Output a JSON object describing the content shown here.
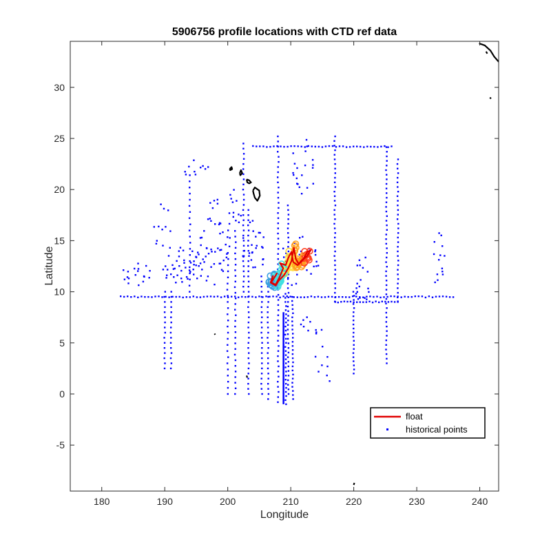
{
  "chart_data": {
    "type": "scatter",
    "title": "5906756 profile locations with CTD ref data",
    "xlabel": "Longitude",
    "ylabel": "Latitude",
    "xlim": [
      175,
      243
    ],
    "ylim": [
      -9.5,
      34.5
    ],
    "xticks": [
      180,
      190,
      200,
      210,
      220,
      230,
      240
    ],
    "yticks": [
      -5,
      0,
      5,
      10,
      15,
      20,
      25,
      30
    ],
    "grid": false,
    "legend_position": "bottom-right",
    "legend": [
      "float",
      "historical points"
    ],
    "colors": {
      "float": "#e00000",
      "historical": "#0000ff",
      "coast": "#000000",
      "float_markers": [
        "#3aa0e0",
        "#40e0e0",
        "#ffe040",
        "#ffa020",
        "#ff4020"
      ]
    },
    "series": [
      {
        "name": "float",
        "type": "line",
        "points": [
          [
            207.3,
            11.3
          ],
          [
            207.8,
            11.8
          ],
          [
            206.9,
            10.9
          ],
          [
            207.6,
            10.7
          ],
          [
            208.2,
            11.4
          ],
          [
            208.8,
            12.3
          ],
          [
            208.3,
            12.8
          ],
          [
            209.2,
            12.6
          ],
          [
            209.6,
            13.3
          ],
          [
            210.1,
            13.9
          ],
          [
            210.4,
            12.9
          ],
          [
            211.1,
            12.6
          ],
          [
            211.9,
            13.1
          ],
          [
            212.6,
            13.5
          ],
          [
            213.2,
            14.1
          ],
          [
            212.6,
            13.9
          ],
          [
            212.1,
            13.3
          ],
          [
            211.6,
            13.0
          ],
          [
            211.3,
            12.7
          ],
          [
            210.8,
            13.2
          ],
          [
            210.5,
            14.3
          ],
          [
            210.1,
            13.0
          ],
          [
            209.6,
            12.3
          ],
          [
            208.9,
            11.6
          ],
          [
            208.1,
            11.1
          ],
          [
            207.6,
            10.6
          ],
          [
            206.8,
            10.9
          ],
          [
            207.2,
            11.6
          ]
        ]
      },
      {
        "name": "historical points",
        "type": "scatter",
        "segments": [
          {
            "axis": "v",
            "x": 202.5,
            "from": 10.0,
            "to": 24.5,
            "step": 0.5
          },
          {
            "axis": "v",
            "x": 203.3,
            "from": 0.0,
            "to": 18.0,
            "step": 0.5
          },
          {
            "axis": "v",
            "x": 201.2,
            "from": 0.0,
            "to": 16.0,
            "step": 0.55
          },
          {
            "axis": "v",
            "x": 200.0,
            "from": 0.0,
            "to": 14.0,
            "step": 0.6
          },
          {
            "axis": "v",
            "x": 205.4,
            "from": 0.0,
            "to": 11.5,
            "step": 0.5
          },
          {
            "axis": "v",
            "x": 206.4,
            "from": -0.5,
            "to": 10.5,
            "step": 0.5
          },
          {
            "axis": "v",
            "x": 208.0,
            "from": -0.8,
            "to": 25.5,
            "step": 0.5
          },
          {
            "axis": "v",
            "x": 209.2,
            "from": -1.0,
            "to": 10.0,
            "step": 0.4
          },
          {
            "axis": "v",
            "x": 209.6,
            "from": 0.0,
            "to": 18.5,
            "step": 0.45
          },
          {
            "axis": "v",
            "x": 210.3,
            "from": -0.5,
            "to": 9.5,
            "step": 0.4
          },
          {
            "axis": "v",
            "x": 217.0,
            "from": 9.0,
            "to": 25.5,
            "step": 0.45
          },
          {
            "axis": "v",
            "x": 220.0,
            "from": 2.0,
            "to": 10.0,
            "step": 0.4
          },
          {
            "axis": "v",
            "x": 225.2,
            "from": 3.0,
            "to": 24.3,
            "step": 0.45
          },
          {
            "axis": "v",
            "x": 227.0,
            "from": 9.0,
            "to": 23.0,
            "step": 0.45
          },
          {
            "axis": "v",
            "x": 191.0,
            "from": 2.5,
            "to": 10.0,
            "step": 0.5
          },
          {
            "axis": "v",
            "x": 190.0,
            "from": 2.5,
            "to": 10.0,
            "step": 0.5
          },
          {
            "axis": "v",
            "x": 194.0,
            "from": 10.0,
            "to": 21.5,
            "step": 0.6
          },
          {
            "axis": "h",
            "y": 9.5,
            "from": 183.0,
            "to": 236.0,
            "step": 0.55
          },
          {
            "axis": "h",
            "y": 24.2,
            "from": 204.0,
            "to": 226.0,
            "step": 0.55
          },
          {
            "axis": "h",
            "y": 9.0,
            "from": 217.0,
            "to": 227.0,
            "step": 0.5
          }
        ],
        "clusters": [
          {
            "cx": 193.0,
            "cy": 12.5,
            "rx": 3.5,
            "ry": 2.0,
            "n": 45
          },
          {
            "cx": 198.0,
            "cy": 14.0,
            "rx": 3.0,
            "ry": 3.5,
            "n": 40
          },
          {
            "cx": 185.5,
            "cy": 11.8,
            "rx": 2.5,
            "ry": 1.2,
            "n": 18
          },
          {
            "cx": 211.0,
            "cy": 13.0,
            "rx": 3.5,
            "ry": 2.5,
            "n": 35
          },
          {
            "cx": 212.0,
            "cy": 22.0,
            "rx": 2.0,
            "ry": 3.0,
            "n": 20
          },
          {
            "cx": 221.5,
            "cy": 11.0,
            "rx": 1.5,
            "ry": 2.5,
            "n": 18
          },
          {
            "cx": 233.5,
            "cy": 13.0,
            "rx": 1.0,
            "ry": 3.0,
            "n": 14
          },
          {
            "cx": 195.0,
            "cy": 22.0,
            "rx": 2.0,
            "ry": 1.0,
            "n": 10
          },
          {
            "cx": 213.0,
            "cy": 6.5,
            "rx": 2.0,
            "ry": 1.2,
            "n": 10
          },
          {
            "cx": 215.5,
            "cy": 3.0,
            "rx": 2.0,
            "ry": 2.0,
            "n": 8
          },
          {
            "cx": 199.5,
            "cy": 18.0,
            "rx": 3.0,
            "ry": 2.5,
            "n": 20
          },
          {
            "cx": 204.0,
            "cy": 14.0,
            "rx": 2.0,
            "ry": 3.0,
            "n": 25
          },
          {
            "cx": 190.0,
            "cy": 16.5,
            "rx": 2.0,
            "ry": 2.5,
            "n": 12
          }
        ]
      }
    ],
    "float_marker_cluster": {
      "cx": 209.5,
      "cy": 12.0,
      "n": 110
    },
    "coastlines": [
      {
        "name": "hawaii_island",
        "points": [
          [
            204.0,
            19.9
          ],
          [
            204.3,
            20.2
          ],
          [
            205.0,
            19.9
          ],
          [
            205.1,
            19.4
          ],
          [
            204.7,
            18.9
          ],
          [
            204.3,
            19.2
          ],
          [
            204.1,
            19.6
          ],
          [
            204.0,
            19.9
          ]
        ]
      },
      {
        "name": "maui",
        "points": [
          [
            203.0,
            21.0
          ],
          [
            203.4,
            20.9
          ],
          [
            203.7,
            20.7
          ],
          [
            203.4,
            20.6
          ],
          [
            203.1,
            20.7
          ],
          [
            203.0,
            21.0
          ]
        ]
      },
      {
        "name": "oahu",
        "points": [
          [
            201.9,
            21.6
          ],
          [
            202.1,
            21.9
          ],
          [
            202.3,
            21.6
          ],
          [
            202.0,
            21.4
          ],
          [
            201.9,
            21.6
          ]
        ]
      },
      {
        "name": "kauai",
        "points": [
          [
            200.3,
            22.0
          ],
          [
            200.6,
            22.2
          ],
          [
            200.7,
            22.0
          ],
          [
            200.4,
            21.9
          ],
          [
            200.3,
            22.0
          ]
        ]
      },
      {
        "name": "california",
        "points": [
          [
            239.9,
            34.3
          ],
          [
            240.8,
            34.1
          ],
          [
            241.7,
            33.6
          ],
          [
            242.3,
            33.0
          ],
          [
            243.0,
            32.5
          ]
        ]
      },
      {
        "name": "ca_island_a",
        "points": [
          [
            241.0,
            33.5
          ],
          [
            241.2,
            33.3
          ]
        ]
      },
      {
        "name": "ca_island_b",
        "points": [
          [
            241.6,
            29.0
          ],
          [
            241.8,
            28.9
          ]
        ]
      },
      {
        "name": "palmyra",
        "points": [
          [
            197.9,
            5.9
          ],
          [
            198.0,
            5.8
          ]
        ]
      },
      {
        "name": "jarvis",
        "points": [
          [
            203.0,
            1.8
          ],
          [
            203.1,
            1.6
          ]
        ]
      },
      {
        "name": "malden",
        "points": [
          [
            220.0,
            -8.9
          ],
          [
            220.1,
            -8.7
          ]
        ]
      }
    ]
  }
}
